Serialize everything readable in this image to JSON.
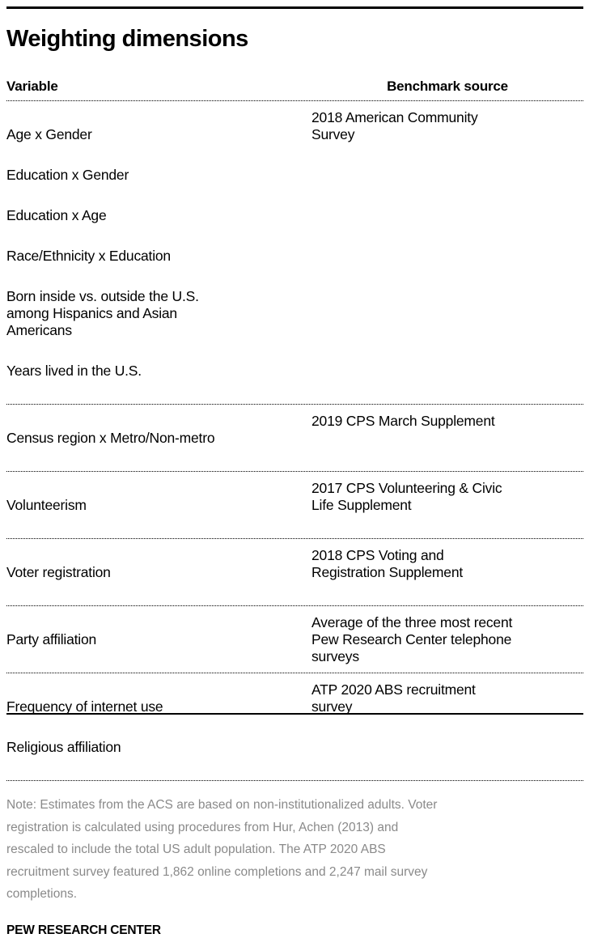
{
  "title": "Weighting dimensions",
  "table": {
    "header": {
      "variable": "Variable",
      "benchmark": "Benchmark source"
    },
    "rows": [
      {
        "variables": [
          "Age x Gender",
          "Education x Gender",
          "Education x Age",
          "Race/Ethnicity x Education",
          "Born inside vs. outside the U.S.\namong Hispanics and Asian\nAmericans",
          "Years lived in the U.S."
        ],
        "benchmark": "2018 American Community\nSurvey"
      },
      {
        "variables": [
          "Census region x Metro/Non-metro"
        ],
        "benchmark": "2019 CPS March Supplement"
      },
      {
        "variables": [
          "Volunteerism"
        ],
        "benchmark": "2017 CPS Volunteering & Civic\nLife Supplement"
      },
      {
        "variables": [
          "Voter registration"
        ],
        "benchmark": "2018 CPS Voting and\nRegistration Supplement"
      },
      {
        "variables": [
          "Party affiliation"
        ],
        "benchmark": "Average of the three most recent\nPew Research Center telephone\nsurveys"
      },
      {
        "variables": [
          "Frequency of internet use",
          "Religious affiliation"
        ],
        "benchmark": "ATP 2020 ABS recruitment\nsurvey"
      }
    ]
  },
  "note": "Note: Estimates from the ACS are based on non-institutionalized adults. Voter\nregistration is calculated using procedures from Hur, Achen (2013) and\nrescaled to include the total US adult population. The ATP 2020 ABS\nrecruitment survey featured 1,862 online completions and 2,247 mail survey\ncompletions.",
  "footer": "PEW RESEARCH CENTER",
  "colors": {
    "text": "#000000",
    "note_text": "#8a8a8a",
    "rule": "#000000"
  },
  "chart_data": {
    "type": "table",
    "title": "Weighting dimensions",
    "columns": [
      "Variable",
      "Benchmark source"
    ],
    "rows": [
      [
        "Age x Gender; Education x Gender; Education x Age; Race/Ethnicity x Education; Born inside vs. outside the U.S. among Hispanics and Asian Americans; Years lived in the U.S.",
        "2018 American Community Survey"
      ],
      [
        "Census region x Metro/Non-metro",
        "2019 CPS March Supplement"
      ],
      [
        "Volunteerism",
        "2017 CPS Volunteering & Civic Life Supplement"
      ],
      [
        "Voter registration",
        "2018 CPS Voting and Registration Supplement"
      ],
      [
        "Party affiliation",
        "Average of the three most recent Pew Research Center telephone surveys"
      ],
      [
        "Frequency of internet use; Religious affiliation",
        "ATP 2020 ABS recruitment survey"
      ]
    ],
    "note": "Note: Estimates from the ACS are based on non-institutionalized adults. Voter registration is calculated using procedures from Hur, Achen (2013) and rescaled to include the total US adult population. The ATP 2020 ABS recruitment survey featured 1,862 online completions and 2,247 mail survey completions.",
    "source": "PEW RESEARCH CENTER"
  }
}
